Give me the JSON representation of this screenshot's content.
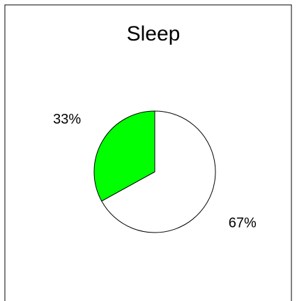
{
  "chart_data": {
    "type": "pie",
    "title": "Sleep",
    "values": [
      67,
      33
    ],
    "value_labels": [
      "67%",
      "33%"
    ],
    "colors": [
      "#ffffff",
      "#00ff00"
    ],
    "start_angle": 90,
    "direction": "clockwise"
  }
}
